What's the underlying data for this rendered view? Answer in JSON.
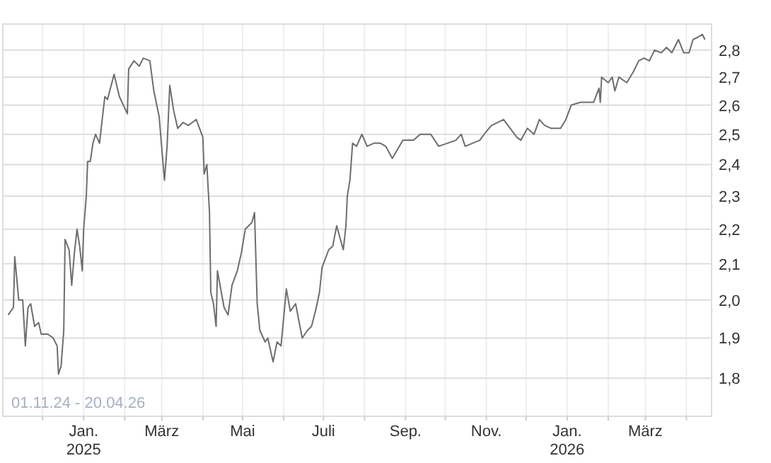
{
  "chart_data": {
    "type": "line",
    "log": true,
    "grid": true,
    "marker": "none",
    "line_style": "solid",
    "annotations": [
      "01.11.24 - 20.04.26"
    ],
    "xlim": [
      "2024-11-01",
      "2026-04-20"
    ],
    "xticks": [
      {
        "value": "2024-12-01",
        "label": null
      },
      {
        "value": "2025-01-01",
        "label": "Jan.\n2025"
      },
      {
        "value": "2025-02-01",
        "label": null
      },
      {
        "value": "2025-03-01",
        "label": "März"
      },
      {
        "value": "2025-04-01",
        "label": null
      },
      {
        "value": "2025-05-01",
        "label": "Mai"
      },
      {
        "value": "2025-06-01",
        "label": null
      },
      {
        "value": "2025-07-01",
        "label": "Juli"
      },
      {
        "value": "2025-08-01",
        "label": null
      },
      {
        "value": "2025-09-01",
        "label": "Sep."
      },
      {
        "value": "2025-10-01",
        "label": null
      },
      {
        "value": "2025-11-01",
        "label": "Nov."
      },
      {
        "value": "2025-12-01",
        "label": null
      },
      {
        "value": "2026-01-01",
        "label": "Jan.\n2026"
      },
      {
        "value": "2026-02-01",
        "label": null
      },
      {
        "value": "2026-03-01",
        "label": "März"
      },
      {
        "value": "2026-04-01",
        "label": null
      }
    ],
    "ylim": [
      1.71,
      2.9
    ],
    "yticks": [
      {
        "value": 1.8,
        "label": "1,8"
      },
      {
        "value": 1.9,
        "label": "1,9"
      },
      {
        "value": 2.0,
        "label": "2,0"
      },
      {
        "value": 2.1,
        "label": "2,1"
      },
      {
        "value": 2.2,
        "label": "2,2"
      },
      {
        "value": 2.3,
        "label": "2,3"
      },
      {
        "value": 2.4,
        "label": "2,4"
      },
      {
        "value": 2.5,
        "label": "2,5"
      },
      {
        "value": 2.6,
        "label": "2,6"
      },
      {
        "value": 2.7,
        "label": "2,7"
      },
      {
        "value": 2.8,
        "label": "2,8"
      }
    ],
    "x": [
      "2024-11-05",
      "2024-11-09",
      "2024-11-10",
      "2024-11-13",
      "2024-11-16",
      "2024-11-18",
      "2024-11-20",
      "2024-11-22",
      "2024-11-25",
      "2024-11-28",
      "2024-11-30",
      "2024-12-05",
      "2024-12-09",
      "2024-12-12",
      "2024-12-13",
      "2024-12-15",
      "2024-12-17",
      "2024-12-18",
      "2024-12-21",
      "2024-12-23",
      "2024-12-25",
      "2024-12-27",
      "2024-12-29",
      "2024-12-31",
      "2025-01-01",
      "2025-01-03",
      "2025-01-04",
      "2025-01-06",
      "2025-01-08",
      "2025-01-10",
      "2025-01-13",
      "2025-01-15",
      "2025-01-17",
      "2025-01-19",
      "2025-01-24",
      "2025-01-28",
      "2025-02-03",
      "2025-02-04",
      "2025-02-08",
      "2025-02-12",
      "2025-02-15",
      "2025-02-20",
      "2025-02-23",
      "2025-02-27",
      "2025-03-03",
      "2025-03-05",
      "2025-03-07",
      "2025-03-10",
      "2025-03-13",
      "2025-03-17",
      "2025-03-21",
      "2025-03-24",
      "2025-03-27",
      "2025-04-01",
      "2025-04-02",
      "2025-04-04",
      "2025-04-06",
      "2025-04-07",
      "2025-04-09",
      "2025-04-11",
      "2025-04-12",
      "2025-04-17",
      "2025-04-20",
      "2025-04-23",
      "2025-04-27",
      "2025-04-30",
      "2025-05-03",
      "2025-05-08",
      "2025-05-10",
      "2025-05-12",
      "2025-05-14",
      "2025-05-18",
      "2025-05-20",
      "2025-05-24",
      "2025-05-27",
      "2025-05-30",
      "2025-06-03",
      "2025-06-06",
      "2025-06-10",
      "2025-06-15",
      "2025-06-19",
      "2025-06-22",
      "2025-06-25",
      "2025-06-28",
      "2025-06-30",
      "2025-07-05",
      "2025-07-08",
      "2025-07-11",
      "2025-07-16",
      "2025-07-18",
      "2025-07-19",
      "2025-07-21",
      "2025-07-23",
      "2025-07-26",
      "2025-07-30",
      "2025-08-03",
      "2025-08-08",
      "2025-08-13",
      "2025-08-17",
      "2025-08-22",
      "2025-08-30",
      "2025-09-07",
      "2025-09-12",
      "2025-09-20",
      "2025-09-26",
      "2025-10-09",
      "2025-10-13",
      "2025-10-16",
      "2025-10-27",
      "2025-11-01",
      "2025-11-05",
      "2025-11-14",
      "2025-11-19",
      "2025-11-24",
      "2025-11-27",
      "2025-12-02",
      "2025-12-07",
      "2025-12-11",
      "2025-12-15",
      "2025-12-20",
      "2025-12-27",
      "2025-12-31",
      "2026-01-04",
      "2026-01-11",
      "2026-01-21",
      "2026-01-25",
      "2026-01-26",
      "2026-01-27",
      "2026-02-01",
      "2026-02-04",
      "2026-02-06",
      "2026-02-09",
      "2026-02-15",
      "2026-02-20",
      "2026-02-24",
      "2026-02-28",
      "2026-03-04",
      "2026-03-08",
      "2026-03-13",
      "2026-03-17",
      "2026-03-21",
      "2026-03-26",
      "2026-03-30",
      "2026-04-03",
      "2026-04-06",
      "2026-04-10",
      "2026-04-13",
      "2026-04-15"
    ],
    "series": [
      {
        "color": "#6e6e6e",
        "values": [
          1.96,
          1.98,
          2.12,
          2.0,
          2.0,
          1.88,
          1.98,
          1.99,
          1.93,
          1.94,
          1.91,
          1.91,
          1.9,
          1.88,
          1.81,
          1.83,
          1.92,
          2.17,
          2.14,
          2.04,
          2.13,
          2.2,
          2.15,
          2.08,
          2.2,
          2.3,
          2.41,
          2.41,
          2.47,
          2.5,
          2.47,
          2.55,
          2.63,
          2.62,
          2.71,
          2.63,
          2.57,
          2.73,
          2.76,
          2.74,
          2.77,
          2.76,
          2.65,
          2.56,
          2.35,
          2.46,
          2.67,
          2.58,
          2.52,
          2.54,
          2.53,
          2.54,
          2.55,
          2.49,
          2.37,
          2.4,
          2.25,
          2.02,
          1.99,
          1.93,
          2.08,
          1.98,
          1.96,
          2.04,
          2.08,
          2.13,
          2.2,
          2.22,
          2.25,
          1.99,
          1.92,
          1.89,
          1.9,
          1.84,
          1.89,
          1.88,
          2.03,
          1.97,
          1.99,
          1.9,
          1.92,
          1.93,
          1.97,
          2.02,
          2.09,
          2.14,
          2.15,
          2.21,
          2.14,
          2.21,
          2.3,
          2.35,
          2.47,
          2.46,
          2.5,
          2.46,
          2.47,
          2.47,
          2.46,
          2.42,
          2.48,
          2.48,
          2.5,
          2.5,
          2.46,
          2.48,
          2.5,
          2.46,
          2.48,
          2.51,
          2.53,
          2.55,
          2.52,
          2.49,
          2.48,
          2.52,
          2.5,
          2.55,
          2.53,
          2.52,
          2.52,
          2.55,
          2.6,
          2.61,
          2.61,
          2.66,
          2.61,
          2.7,
          2.68,
          2.7,
          2.65,
          2.7,
          2.68,
          2.72,
          2.76,
          2.77,
          2.76,
          2.8,
          2.79,
          2.81,
          2.79,
          2.84,
          2.79,
          2.79,
          2.84,
          2.85,
          2.86,
          2.84
        ]
      }
    ]
  }
}
